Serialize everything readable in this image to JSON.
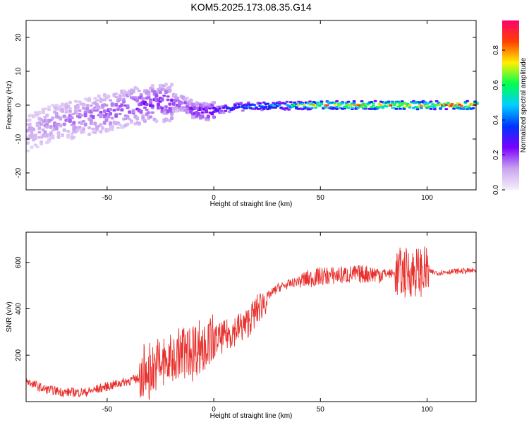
{
  "title": "KOM5.2025.173.08.35.G14",
  "colors": {
    "snr_line": "#e8312e",
    "axis": "#000000"
  },
  "chart_data": [
    {
      "type": "heatmap",
      "xlabel": "Height of straight line (km)",
      "ylabel": "Frequency (Hz)",
      "xlim": [
        -88,
        123
      ],
      "ylim": [
        -25,
        25
      ],
      "xticks": [
        -50,
        0,
        50,
        100
      ],
      "yticks": [
        -20,
        -10,
        0,
        10,
        20
      ],
      "colorbar": {
        "label": "Normalized spectral amplitude",
        "range": [
          0,
          0.97
        ],
        "ticks": [
          "0.0",
          "0.2",
          "0.4",
          "0.6",
          "0.8"
        ],
        "colors": [
          "#f6f0fc",
          "#c9a4ef",
          "#7a00ff",
          "#0033ff",
          "#00cfff",
          "#00ff50",
          "#fff000",
          "#ff4000",
          "#ff0070"
        ]
      },
      "ridge": {
        "x": [
          -88,
          -80,
          -70,
          -60,
          -50,
          -40,
          -30,
          -20,
          -15,
          -10,
          -5,
          0,
          5,
          10,
          20,
          30,
          40,
          50,
          60,
          70,
          80,
          90,
          100,
          110,
          123
        ],
        "freq": [
          -8,
          -6,
          -4.5,
          -3.5,
          -2,
          -0.5,
          0.5,
          0.8,
          0.3,
          -1.5,
          -2,
          -1.5,
          -1,
          -0.5,
          -0.3,
          -0.2,
          -0.1,
          0,
          0,
          0,
          0,
          0,
          0,
          0,
          0
        ],
        "amplitude": [
          0.12,
          0.15,
          0.17,
          0.18,
          0.2,
          0.22,
          0.24,
          0.25,
          0.22,
          0.27,
          0.3,
          0.32,
          0.38,
          0.42,
          0.48,
          0.5,
          0.7,
          0.8,
          0.82,
          0.84,
          0.85,
          0.87,
          0.8,
          0.92,
          0.95
        ]
      }
    },
    {
      "type": "line",
      "xlabel": "Height of straight line (km)",
      "ylabel": "SNR (v/v)",
      "xlim": [
        -88,
        123
      ],
      "ylim": [
        0,
        730
      ],
      "xticks": [
        -50,
        0,
        50,
        100
      ],
      "yticks": [
        200,
        400,
        600
      ],
      "series": [
        {
          "x": [
            -88,
            -80,
            -70,
            -60,
            -50,
            -40,
            -35,
            -30,
            -25,
            -20,
            -15,
            -10,
            -5,
            0,
            5,
            10,
            15,
            20,
            25,
            30,
            40,
            50,
            60,
            70,
            80,
            90,
            95,
            100,
            105,
            110,
            123
          ],
          "y": [
            90,
            55,
            40,
            40,
            65,
            90,
            100,
            130,
            160,
            180,
            210,
            230,
            240,
            260,
            280,
            310,
            330,
            390,
            450,
            490,
            520,
            540,
            545,
            550,
            550,
            555,
            560,
            560,
            555,
            560,
            565
          ]
        }
      ]
    }
  ]
}
